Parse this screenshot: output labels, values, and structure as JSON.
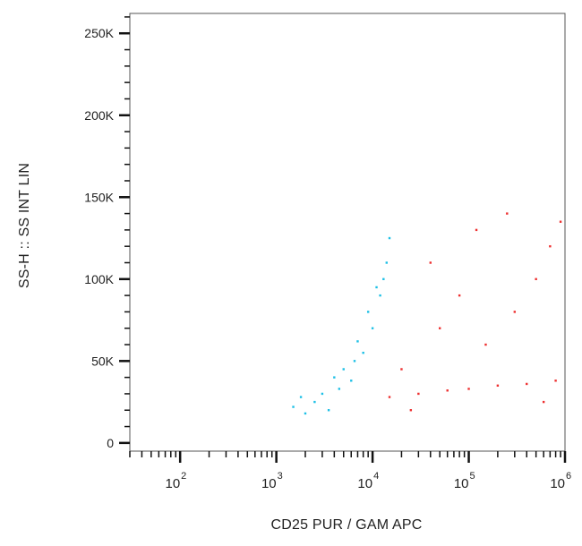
{
  "chart_data": {
    "type": "scatter",
    "title": "",
    "xlabel": "CD25 PUR / GAM APC",
    "ylabel": "SS-H :: SS INT LIN",
    "x_scale": "log",
    "xlim": [
      30,
      1000000
    ],
    "ylim": [
      -5000,
      262144
    ],
    "y_ticks": [
      {
        "value": 0,
        "label": "0"
      },
      {
        "value": 50000,
        "label": "50K"
      },
      {
        "value": 100000,
        "label": "100K"
      },
      {
        "value": 150000,
        "label": "150K"
      },
      {
        "value": 200000,
        "label": "200K"
      },
      {
        "value": 250000,
        "label": "250K"
      }
    ],
    "x_ticks": [
      {
        "value": 100,
        "base": "10",
        "exp": "2"
      },
      {
        "value": 1000,
        "base": "10",
        "exp": "3"
      },
      {
        "value": 10000,
        "base": "10",
        "exp": "4"
      },
      {
        "value": 100000,
        "base": "10",
        "exp": "5"
      },
      {
        "value": 1000000,
        "base": "10",
        "exp": "6"
      }
    ],
    "grid": false,
    "legend": "none",
    "series": [
      {
        "color": "#1ec0e6",
        "points": [
          [
            3000,
            30000
          ],
          [
            1800,
            28000
          ],
          [
            4500,
            33000
          ],
          [
            2500,
            25000
          ],
          [
            6000,
            38000
          ],
          [
            8000,
            55000
          ],
          [
            10000,
            70000
          ],
          [
            12000,
            90000
          ],
          [
            14000,
            110000
          ],
          [
            15000,
            125000
          ],
          [
            7000,
            62000
          ],
          [
            9000,
            80000
          ],
          [
            11000,
            95000
          ],
          [
            5000,
            45000
          ],
          [
            3500,
            20000
          ],
          [
            2000,
            18000
          ],
          [
            1500,
            22000
          ],
          [
            4000,
            40000
          ],
          [
            6500,
            50000
          ],
          [
            13000,
            100000
          ]
        ]
      },
      {
        "color": "#ee3030",
        "points": [
          [
            15000,
            28000
          ],
          [
            30000,
            30000
          ],
          [
            60000,
            32000
          ],
          [
            100000,
            33000
          ],
          [
            200000,
            35000
          ],
          [
            400000,
            36000
          ],
          [
            800000,
            38000
          ],
          [
            20000,
            45000
          ],
          [
            50000,
            70000
          ],
          [
            80000,
            90000
          ],
          [
            150000,
            60000
          ],
          [
            300000,
            80000
          ],
          [
            500000,
            100000
          ],
          [
            40000,
            110000
          ],
          [
            120000,
            130000
          ],
          [
            250000,
            140000
          ],
          [
            700000,
            120000
          ],
          [
            900000,
            135000
          ],
          [
            25000,
            20000
          ],
          [
            600000,
            25000
          ]
        ]
      }
    ]
  }
}
